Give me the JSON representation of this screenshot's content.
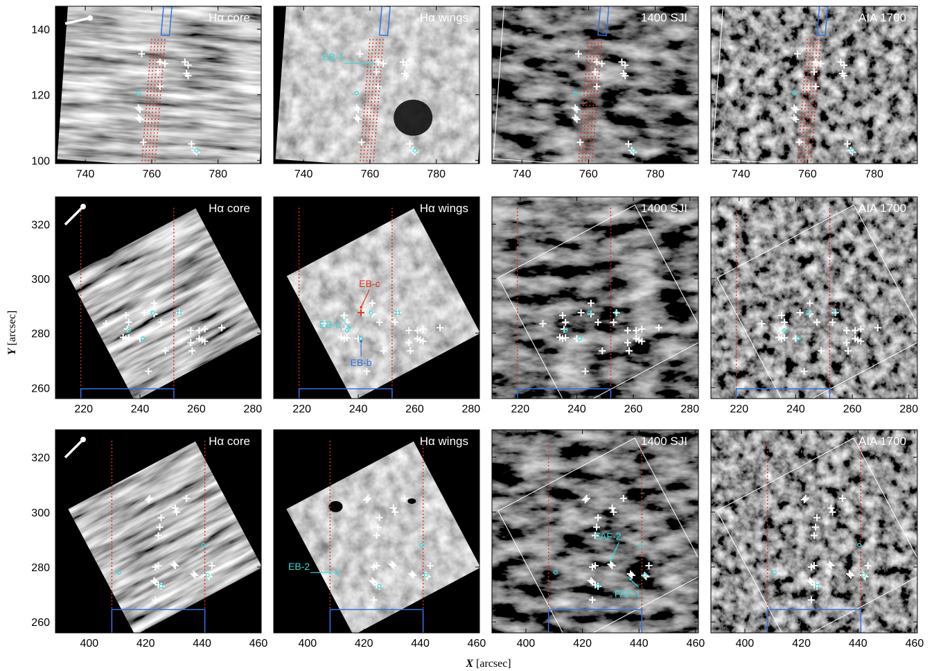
{
  "figure": {
    "x_axis_label_var": "X",
    "x_axis_label_unit": " [arcsec]",
    "y_axis_label_var": "Y",
    "y_axis_label_unit": " [arcsec]"
  },
  "columns": [
    "Hα core",
    "Hα wings",
    "1400 SJI",
    "AIA 1700"
  ],
  "rows": [
    {
      "name": "row-1",
      "x_range": [
        731,
        793
      ],
      "y_range": [
        99,
        147
      ],
      "x_ticks": [
        740,
        760,
        780
      ],
      "y_ticks": [
        100,
        120,
        140
      ],
      "slit_x": [
        760,
        761,
        762,
        763,
        764
      ],
      "slit_top_y": 137,
      "bracket": null,
      "markers": [
        {
          "x": 757,
          "y": 132.5
        },
        {
          "x": 762.5,
          "y": 130
        },
        {
          "x": 764,
          "y": 129.5
        },
        {
          "x": 770,
          "y": 130
        },
        {
          "x": 771,
          "y": 129
        },
        {
          "x": 762,
          "y": 127
        },
        {
          "x": 770.5,
          "y": 126.5
        },
        {
          "x": 771,
          "y": 125.8
        },
        {
          "x": 762.5,
          "y": 122.5
        },
        {
          "x": 756,
          "y": 116
        },
        {
          "x": 756.5,
          "y": 115.5
        },
        {
          "x": 756,
          "y": 113
        },
        {
          "x": 756.5,
          "y": 112.5
        },
        {
          "x": 757.5,
          "y": 105.5
        },
        {
          "x": 772,
          "y": 105
        },
        {
          "x": 773,
          "y": 103
        },
        {
          "x": 773.5,
          "y": 102.5
        }
      ],
      "cyan_dots": [
        {
          "x": 756,
          "y": 120.5
        },
        {
          "x": 773.5,
          "y": 103
        }
      ],
      "annotations": [
        {
          "panel": 1,
          "text": "EB-1",
          "color": "#33dddd",
          "tx": 749,
          "ty": 130.5,
          "ax": 760.5,
          "ay": 129.5
        }
      ]
    },
    {
      "name": "row-2",
      "x_range": [
        210,
        283
      ],
      "y_range": [
        256,
        330
      ],
      "x_ticks": [
        220,
        240,
        260,
        280
      ],
      "y_ticks": [
        260,
        280,
        300,
        320
      ],
      "slit_x": [
        219,
        252
      ],
      "slit_top_y": 326,
      "bracket": {
        "x0": 219,
        "x1": 252,
        "y": 259.6
      },
      "markers": [
        {
          "x": 228,
          "y": 283.5
        },
        {
          "x": 235,
          "y": 286.5
        },
        {
          "x": 236,
          "y": 284
        },
        {
          "x": 235.5,
          "y": 281.5
        },
        {
          "x": 234,
          "y": 278.5
        },
        {
          "x": 235,
          "y": 278
        },
        {
          "x": 236,
          "y": 278.3
        },
        {
          "x": 240,
          "y": 278
        },
        {
          "x": 241.5,
          "y": 287.5
        },
        {
          "x": 245,
          "y": 291
        },
        {
          "x": 245,
          "y": 287
        },
        {
          "x": 247.5,
          "y": 284
        },
        {
          "x": 254,
          "y": 287.5
        },
        {
          "x": 253,
          "y": 284
        },
        {
          "x": 258,
          "y": 281
        },
        {
          "x": 261,
          "y": 281
        },
        {
          "x": 263,
          "y": 281.5
        },
        {
          "x": 269,
          "y": 282
        },
        {
          "x": 261,
          "y": 278
        },
        {
          "x": 262,
          "y": 277.5
        },
        {
          "x": 263,
          "y": 277
        },
        {
          "x": 258,
          "y": 276.5
        },
        {
          "x": 258.5,
          "y": 273.5
        },
        {
          "x": 249,
          "y": 273.5
        },
        {
          "x": 243,
          "y": 266
        }
      ],
      "cyan_dots": [
        {
          "x": 244.5,
          "y": 287.5
        },
        {
          "x": 254,
          "y": 287.5
        },
        {
          "x": 236,
          "y": 281
        },
        {
          "x": 241,
          "y": 278
        }
      ],
      "annotations": [
        {
          "panel": 1,
          "text": "EB-a",
          "color": "#33dddd",
          "tx": 230,
          "ty": 282,
          "ax": 237,
          "ay": 282
        },
        {
          "panel": 1,
          "text": "EB-b",
          "color": "#2f72e6",
          "tx": 241,
          "ty": 268,
          "ax": 241,
          "ay": 277
        },
        {
          "panel": 1,
          "text": "EB-c",
          "color": "#e03020",
          "tx": 244,
          "ty": 297,
          "ax": 241,
          "ay": 289.5
        }
      ],
      "red_marker": {
        "panel": 1,
        "x": 241,
        "y": 287.5
      }
    },
    {
      "name": "row-3",
      "x_range": [
        388,
        461
      ],
      "y_range": [
        256,
        330
      ],
      "x_ticks": [
        400,
        420,
        440,
        460
      ],
      "y_ticks": [
        260,
        280,
        300,
        320
      ],
      "slit_x": [
        408,
        441
      ],
      "slit_top_y": 326,
      "bracket": {
        "x0": 408,
        "x1": 441,
        "y": 264.5
      },
      "markers": [
        {
          "x": 421,
          "y": 304.5
        },
        {
          "x": 421.5,
          "y": 305
        },
        {
          "x": 430.5,
          "y": 301.5
        },
        {
          "x": 431,
          "y": 300
        },
        {
          "x": 434.5,
          "y": 305
        },
        {
          "x": 425.5,
          "y": 298
        },
        {
          "x": 425,
          "y": 294.5
        },
        {
          "x": 424.5,
          "y": 291.5
        },
        {
          "x": 423.5,
          "y": 280
        },
        {
          "x": 424.5,
          "y": 280.5
        },
        {
          "x": 430,
          "y": 281
        },
        {
          "x": 430.5,
          "y": 280.5
        },
        {
          "x": 443.5,
          "y": 280.5
        },
        {
          "x": 437,
          "y": 277.5
        },
        {
          "x": 437.5,
          "y": 277
        },
        {
          "x": 442,
          "y": 277
        },
        {
          "x": 442.5,
          "y": 276.5
        },
        {
          "x": 423,
          "y": 275
        },
        {
          "x": 423.5,
          "y": 274.5
        },
        {
          "x": 424.5,
          "y": 273.5
        },
        {
          "x": 425.5,
          "y": 273
        },
        {
          "x": 423.5,
          "y": 268
        }
      ],
      "cyan_dots": [
        {
          "x": 440.5,
          "y": 288
        },
        {
          "x": 410.5,
          "y": 278
        },
        {
          "x": 425.5,
          "y": 273
        },
        {
          "x": 442,
          "y": 277
        }
      ],
      "annotations": [
        {
          "panel": 1,
          "text": "EB-2",
          "color": "#33dddd",
          "tx": 397,
          "ty": 279,
          "ax": 408,
          "ay": 278
        },
        {
          "panel": 2,
          "text": "FAF-2",
          "color": "#33dddd",
          "tx": 429,
          "ty": 290,
          "ax": 430,
          "ay": 282.5
        },
        {
          "panel": 2,
          "text": "FAF-1",
          "color": "#33dddd",
          "tx": 436,
          "ty": 269,
          "ax": 437,
          "ay": 275.5
        }
      ]
    }
  ]
}
